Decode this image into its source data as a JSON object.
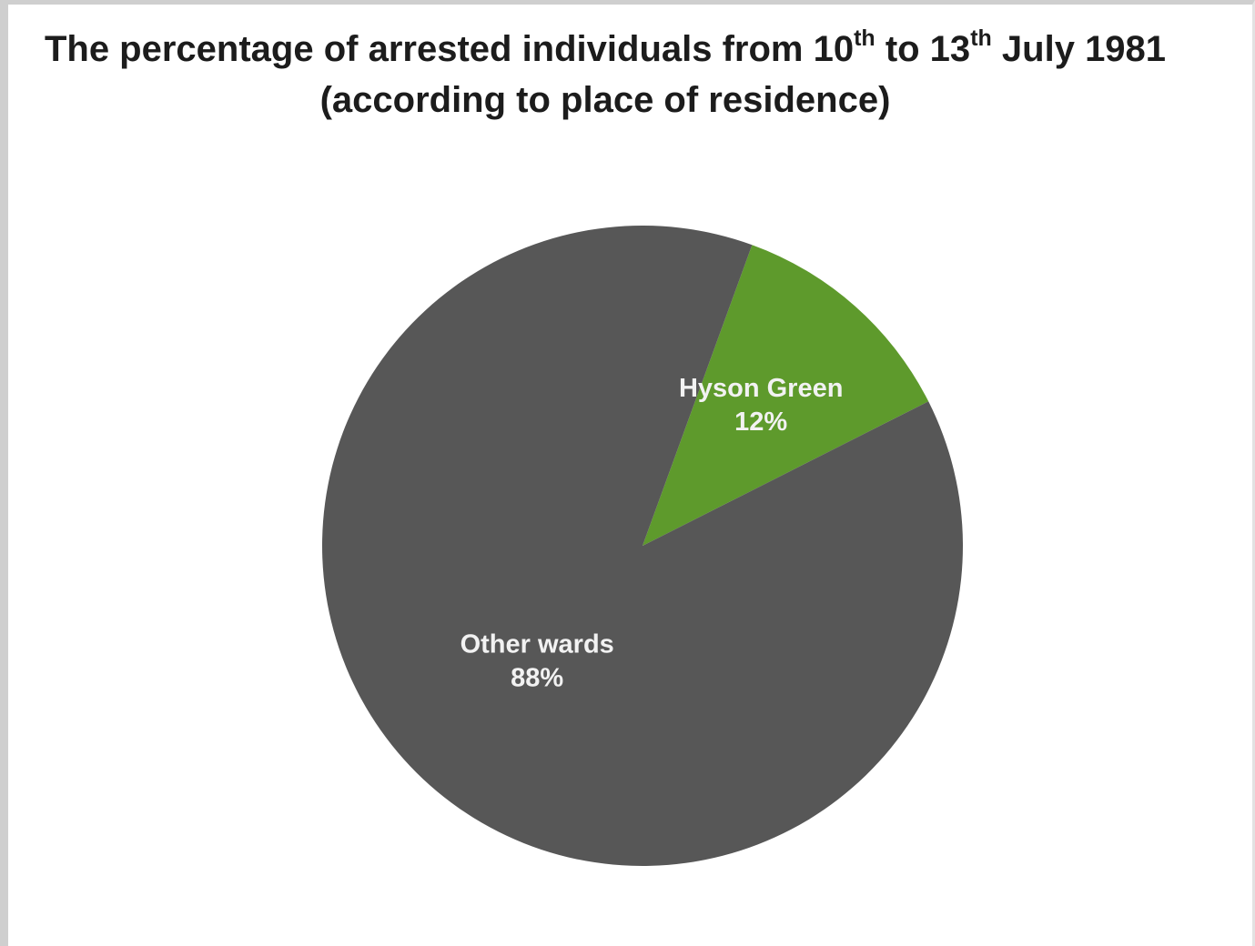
{
  "title": {
    "line1_a": "The percentage of arrested individuals from 10",
    "line1_sup1": "th",
    "line1_b": " to 13",
    "line1_sup2": "th",
    "line1_c": " July 1981",
    "line2": "(according to place of residence)"
  },
  "chart_data": {
    "type": "pie",
    "title": "The percentage of arrested individuals from 10th to 13th July 1981 (according to place of residence)",
    "slices": [
      {
        "label": "Hyson Green",
        "value": 12,
        "display": "12%",
        "color": "#5e9a2c"
      },
      {
        "label": "Other wards",
        "value": 88,
        "display": "88%",
        "color": "#575757"
      }
    ],
    "legend": "none",
    "labels_inside": true
  }
}
